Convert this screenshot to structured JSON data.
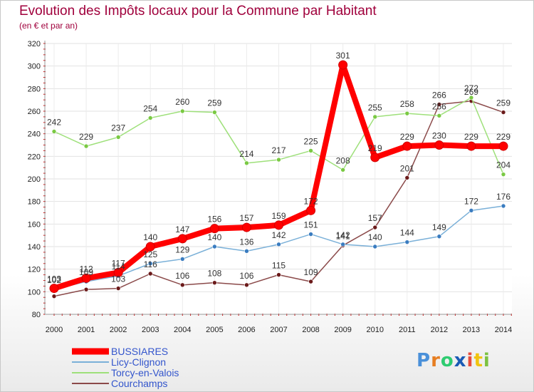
{
  "title": "Evolution des Impôts locaux pour la Commune par Habitant",
  "subtitle": "(en € et par an)",
  "logo": {
    "text": "Proxiti",
    "letters": [
      "P",
      "r",
      "o",
      "x",
      "i",
      "t",
      "i"
    ],
    "letter_colors": [
      "#4a90d9",
      "#e67e22",
      "#2ecc71",
      "#1a5bb5",
      "#e74c3c",
      "#f1c40f",
      "#7dc242"
    ]
  },
  "chart_data": {
    "type": "line",
    "title": "Evolution des Impôts locaux pour la Commune par Habitant",
    "subtitle": "(en € et par an)",
    "xlabel": "",
    "ylabel": "",
    "x": [
      2000,
      2001,
      2002,
      2003,
      2004,
      2005,
      2006,
      2007,
      2008,
      2009,
      2010,
      2011,
      2012,
      2013,
      2014
    ],
    "ylim": [
      80,
      320
    ],
    "yticks": [
      80,
      100,
      120,
      140,
      160,
      180,
      200,
      220,
      240,
      260,
      280,
      300,
      320
    ],
    "grid": true,
    "legend_position": "bottom-left",
    "series": [
      {
        "name": "BUSSIARES",
        "color": "#ff0000",
        "marker_color": "#ff0000",
        "values": [
          103,
          112,
          117,
          140,
          147,
          156,
          157,
          159,
          172,
          301,
          219,
          229,
          230,
          229,
          229
        ]
      },
      {
        "name": "Licy-Clignon",
        "color": "#7ab0d8",
        "marker_color": "#3a7cc0",
        "values": [
          102,
          109,
          114,
          125,
          129,
          140,
          136,
          142,
          151,
          142,
          140,
          144,
          149,
          172,
          176
        ]
      },
      {
        "name": "Torcy-en-Valois",
        "color": "#9ee07a",
        "marker_color": "#7ac943",
        "values": [
          242,
          229,
          237,
          254,
          260,
          259,
          214,
          217,
          225,
          208,
          255,
          258,
          256,
          272,
          204
        ]
      },
      {
        "name": "Courchamps",
        "color": "#8b4a4a",
        "marker_color": "#6b1a1a",
        "values": [
          96,
          102,
          103,
          116,
          106,
          108,
          106,
          115,
          109,
          141,
          157,
          201,
          266,
          269,
          259
        ]
      }
    ],
    "data_labels": [
      {
        "series": 3,
        "labels": [
          "",
          "",
          "103",
          "116",
          "106",
          "108",
          "106",
          "115",
          "109",
          "141",
          "157",
          "201",
          "266",
          "269",
          "259"
        ]
      },
      {
        "series": 1,
        "labels": [
          "102",
          "109",
          "114",
          "125",
          "129",
          "140",
          "136",
          "142",
          "151",
          "142",
          "140",
          "144",
          "149",
          "172",
          "176"
        ]
      },
      {
        "series": 2,
        "labels": [
          "242",
          "229",
          "237",
          "254",
          "260",
          "259",
          "214",
          "217",
          "225",
          "208",
          "255",
          "258",
          "256",
          "272",
          "204"
        ]
      },
      {
        "series": 0,
        "labels": [
          "103",
          "112",
          "117",
          "140",
          "147",
          "156",
          "157",
          "159",
          "172",
          "301",
          "219",
          "229",
          "230",
          "229",
          "229"
        ]
      }
    ]
  }
}
